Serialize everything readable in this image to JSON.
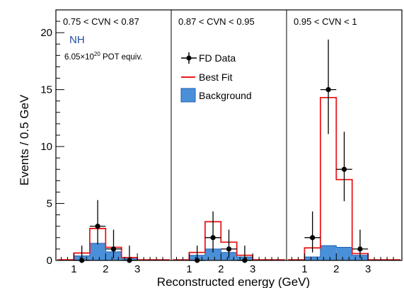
{
  "chart_data": {
    "type": "histogram",
    "ylabel": "Events / 0.5 GeV",
    "xlabel": "Reconstructed energy (GeV)",
    "ylim": [
      0,
      22
    ],
    "yticks": [
      "0",
      "5",
      "10",
      "15",
      "20"
    ],
    "panel_xlim": [
      0.5,
      4.0
    ],
    "xticks": [
      "1",
      "2",
      "3"
    ],
    "hierarchy_label": "NH",
    "exposure": {
      "base": "6.05×10",
      "exponent": "20",
      "suffix": " POT equiv."
    },
    "legend": {
      "data": "FD Data",
      "fit": "Best Fit",
      "background": "Background"
    },
    "colors": {
      "fit": "#e8191b",
      "background_fill": "#4a90d9",
      "background_edge": "#1f5fb0",
      "data": "#000000"
    },
    "bins": [
      [
        0.5,
        1.0
      ],
      [
        1.0,
        1.5
      ],
      [
        1.5,
        2.0
      ],
      [
        2.0,
        2.5
      ],
      [
        2.5,
        3.0
      ],
      [
        3.0,
        3.5
      ],
      [
        3.5,
        4.0
      ]
    ],
    "panels": [
      {
        "label": "0.75 < CVN < 0.87",
        "best_fit": [
          0.05,
          0.65,
          2.8,
          1.15,
          0.25,
          0.05,
          0.05
        ],
        "background": [
          0.05,
          0.4,
          1.5,
          0.75,
          0.2,
          0.05,
          0.05
        ],
        "data": [
          {
            "x": 1.25,
            "y": 0,
            "err_low": 0,
            "err_high": 1.3
          },
          {
            "x": 1.75,
            "y": 3,
            "err_low": 1.6,
            "err_high": 2.3
          },
          {
            "x": 2.25,
            "y": 1,
            "err_low": 0.8,
            "err_high": 1.7
          },
          {
            "x": 2.75,
            "y": 0,
            "err_low": 0,
            "err_high": 1.3
          }
        ]
      },
      {
        "label": "0.87 < CVN < 0.95",
        "best_fit": [
          0.05,
          0.7,
          3.4,
          1.6,
          0.45,
          0.05,
          0.05
        ],
        "background": [
          0.05,
          0.45,
          1.0,
          0.7,
          0.3,
          0.05,
          0.05
        ],
        "data": [
          {
            "x": 1.25,
            "y": 0,
            "err_low": 0,
            "err_high": 1.3
          },
          {
            "x": 1.75,
            "y": 2,
            "err_low": 1.3,
            "err_high": 2.3
          },
          {
            "x": 2.25,
            "y": 1,
            "err_low": 0.8,
            "err_high": 1.7
          },
          {
            "x": 2.75,
            "y": 0,
            "err_low": 0,
            "err_high": 1.3
          }
        ]
      },
      {
        "label": "0.95 < CVN < 1",
        "best_fit": [
          0.05,
          1.1,
          14.3,
          7.1,
          0.6,
          0.05,
          0.05
        ],
        "background": [
          0.05,
          0.3,
          1.3,
          1.15,
          0.45,
          0.05,
          0.05
        ],
        "data": [
          {
            "x": 1.25,
            "y": 2,
            "err_low": 1.3,
            "err_high": 2.3
          },
          {
            "x": 1.75,
            "y": 15,
            "err_low": 3.9,
            "err_high": 4.4
          },
          {
            "x": 2.25,
            "y": 8,
            "err_low": 2.8,
            "err_high": 3.3
          },
          {
            "x": 2.75,
            "y": 1,
            "err_low": 0.8,
            "err_high": 1.7
          }
        ]
      }
    ]
  }
}
